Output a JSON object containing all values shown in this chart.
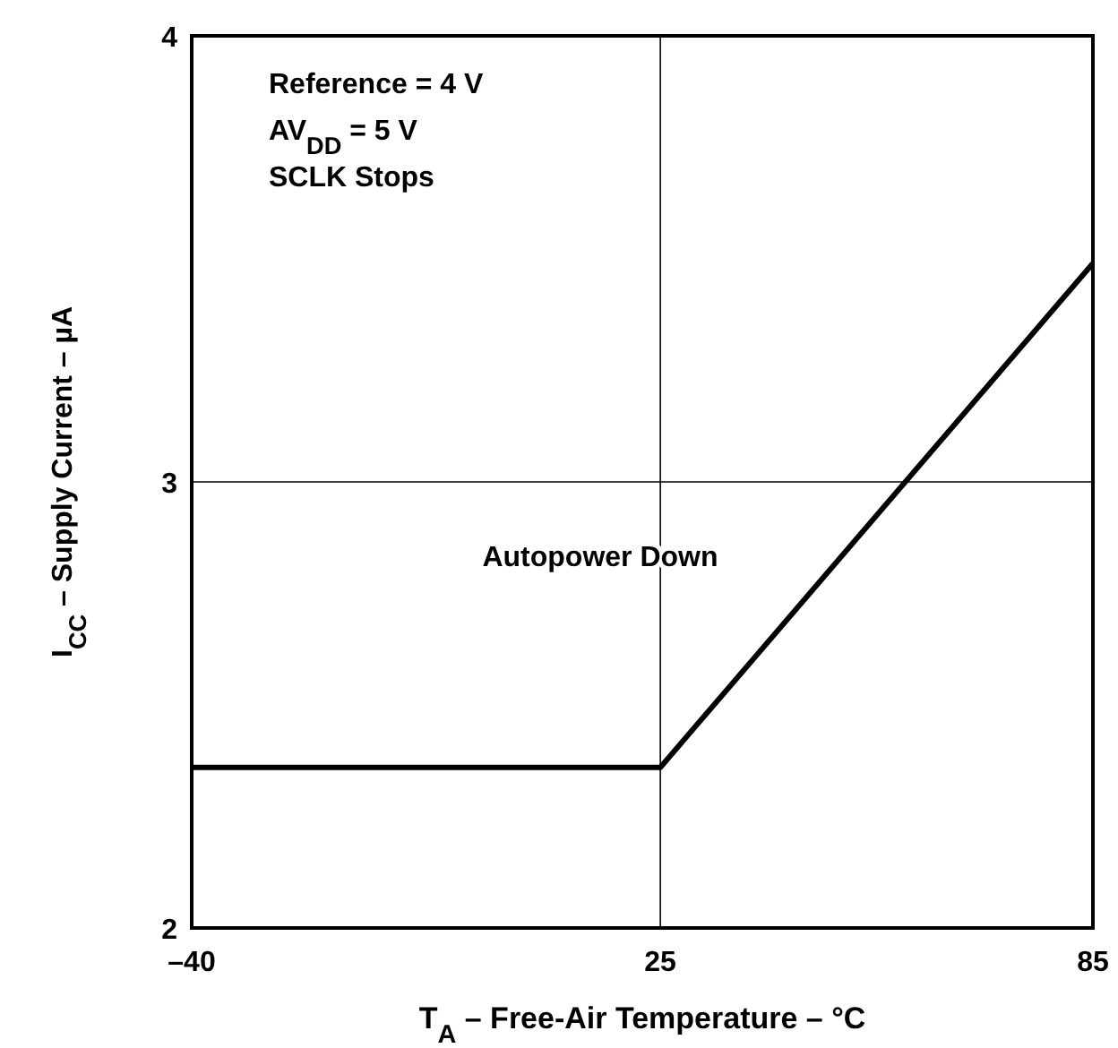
{
  "chart_data": {
    "type": "line",
    "xlabel": "T$_{A}$ – Free-Air Temperature – °C",
    "ylabel": "I$_{CC}$ – Supply Current – µA",
    "x": [
      -40,
      25,
      85
    ],
    "series": [
      {
        "color": "#000000",
        "values": [
          2.36,
          2.36,
          3.49
        ]
      }
    ],
    "xlim": [
      -40,
      85
    ],
    "xticks": [
      {
        "value": -40,
        "label": "–40"
      },
      25,
      85
    ],
    "ylim": [
      2,
      4
    ],
    "yticks": [
      2,
      3,
      4
    ],
    "grid": true,
    "line_style": "solid",
    "annotations": [
      "Reference = 4 V",
      "AV$_{DD}$ = 5 V",
      "SCLK Stops",
      "Autopower Down"
    ]
  }
}
